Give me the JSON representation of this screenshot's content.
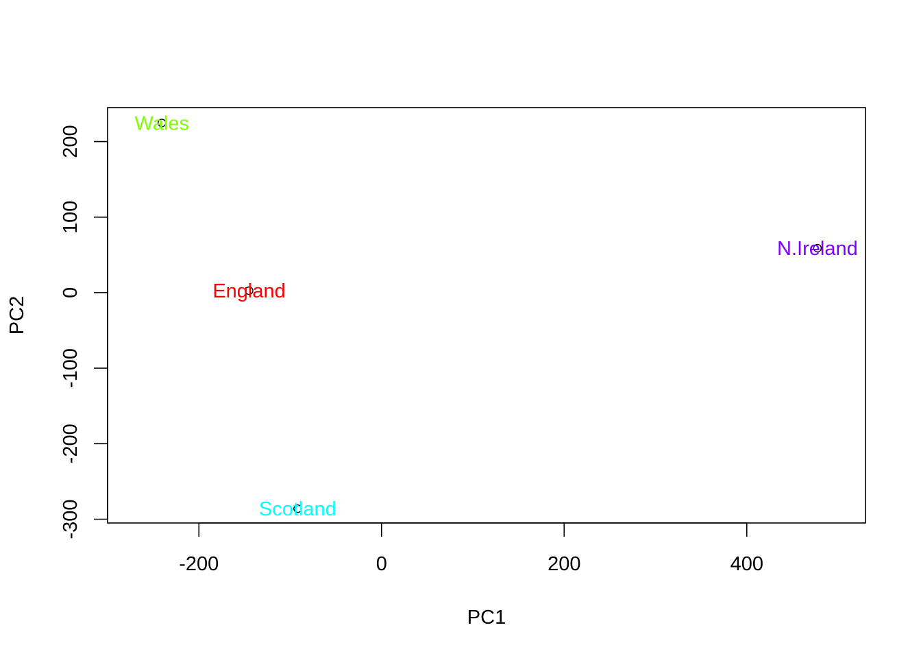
{
  "chart_data": {
    "type": "scatter",
    "title": "",
    "xlabel": "PC1",
    "ylabel": "PC2",
    "xlim": [
      -300,
      530
    ],
    "ylim": [
      -305,
      245
    ],
    "x_ticks": [
      -200,
      0,
      200,
      400
    ],
    "y_ticks": [
      -300,
      -200,
      -100,
      0,
      100,
      200
    ],
    "x_tick_labels": [
      "-200",
      "0",
      "200",
      "400"
    ],
    "y_tick_labels": [
      "-300",
      "-200",
      "-100",
      "0",
      "100",
      "200"
    ],
    "grid": false,
    "marker": "open-circle",
    "points": [
      {
        "label": "England",
        "x": -144.99,
        "y": 2.53,
        "color": "#FF0000"
      },
      {
        "label": "Wales",
        "x": -240.53,
        "y": 224.65,
        "color": "#80FF00"
      },
      {
        "label": "Scotland",
        "x": -91.87,
        "y": -286.08,
        "color": "#00FFFF"
      },
      {
        "label": "N.Ireland",
        "x": 477.39,
        "y": 58.9,
        "color": "#8000FF"
      }
    ]
  }
}
